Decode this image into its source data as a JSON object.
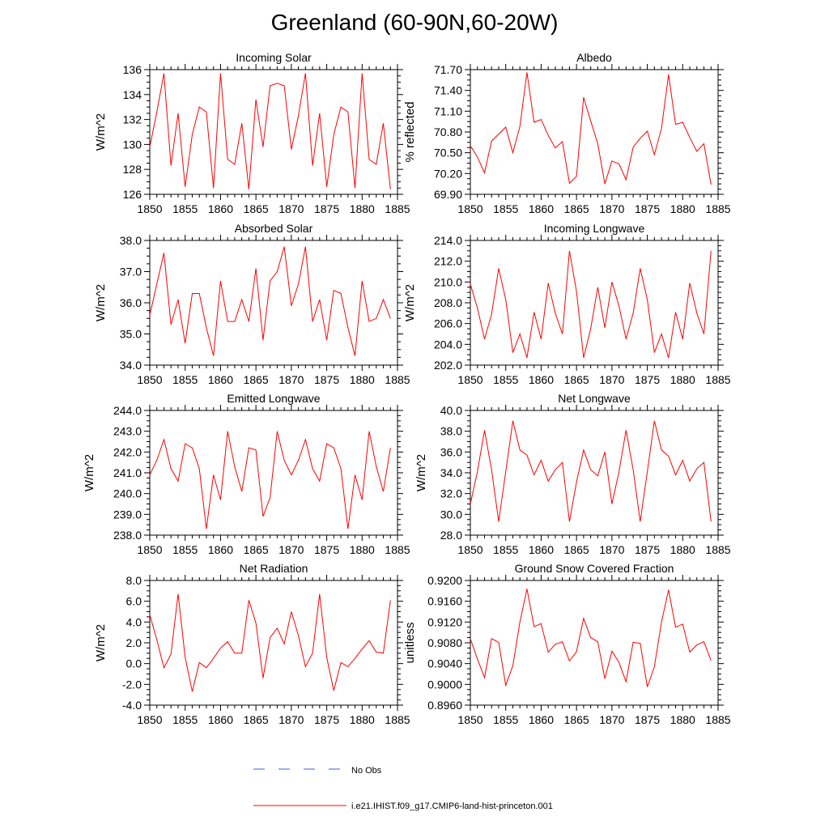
{
  "title": "Greenland (60-90N,60-20W)",
  "legend": {
    "obs_label": "No Obs",
    "obs_color": "#4a5bd6",
    "model_label": "i.e21.IHIST.f09_g17.CMIP6-land-hist-princeton.001",
    "model_color": "#ff0000"
  },
  "chart_data": [
    {
      "type": "line",
      "title": "Incoming Solar",
      "ylabel": "W/m^2",
      "xlim": [
        1850,
        1885
      ],
      "ylim": [
        126,
        136
      ],
      "xticks": [
        "1850",
        "1855",
        "1860",
        "1865",
        "1870",
        "1875",
        "1880",
        "1885"
      ],
      "yticks": [
        "126",
        "128",
        "130",
        "132",
        "134",
        "136"
      ],
      "x": [
        1850,
        1851,
        1852,
        1853,
        1854,
        1855,
        1856,
        1857,
        1858,
        1859,
        1860,
        1861,
        1862,
        1863,
        1864,
        1865,
        1866,
        1867,
        1868,
        1869,
        1870,
        1871,
        1872,
        1873,
        1874,
        1875,
        1876,
        1877,
        1878,
        1879,
        1880,
        1881,
        1882,
        1883,
        1884
      ],
      "series": [
        {
          "values": [
            129.8,
            132.6,
            135.7,
            128.3,
            132.5,
            126.6,
            130.8,
            133.0,
            132.6,
            126.5,
            135.7,
            128.8,
            128.4,
            131.7,
            126.4,
            133.6,
            129.8,
            134.7,
            134.9,
            134.7,
            129.6,
            132.3,
            135.7,
            128.3,
            132.5,
            126.6,
            130.8,
            133.0,
            132.6,
            126.5,
            135.7,
            128.8,
            128.4,
            131.7,
            126.4
          ]
        }
      ]
    },
    {
      "type": "line",
      "title": "Albedo",
      "ylabel": "% reflected",
      "xlim": [
        1850,
        1885
      ],
      "ylim": [
        69.9,
        71.7
      ],
      "xticks": [
        "1850",
        "1855",
        "1860",
        "1865",
        "1870",
        "1875",
        "1880",
        "1885"
      ],
      "yticks": [
        "69.90",
        "70.20",
        "70.50",
        "70.80",
        "71.10",
        "71.40",
        "71.70"
      ],
      "x": [
        1850,
        1851,
        1852,
        1853,
        1854,
        1855,
        1856,
        1857,
        1858,
        1859,
        1860,
        1861,
        1862,
        1863,
        1864,
        1865,
        1866,
        1867,
        1868,
        1869,
        1870,
        1871,
        1872,
        1873,
        1874,
        1875,
        1876,
        1877,
        1878,
        1879,
        1880,
        1881,
        1882,
        1883,
        1884
      ],
      "series": [
        {
          "values": [
            70.6,
            70.44,
            70.21,
            70.67,
            70.77,
            70.87,
            70.5,
            70.88,
            71.66,
            70.94,
            70.98,
            70.75,
            70.57,
            70.66,
            70.06,
            70.16,
            71.3,
            70.96,
            70.63,
            70.05,
            70.38,
            70.34,
            70.11,
            70.58,
            70.71,
            70.81,
            70.47,
            70.85,
            71.63,
            70.91,
            70.94,
            70.72,
            70.52,
            70.63,
            70.04
          ]
        }
      ]
    },
    {
      "type": "line",
      "title": "Absorbed Solar",
      "ylabel": "W/m^2",
      "xlim": [
        1850,
        1885
      ],
      "ylim": [
        34.0,
        38.0
      ],
      "xticks": [
        "1850",
        "1855",
        "1860",
        "1865",
        "1870",
        "1875",
        "1880",
        "1885"
      ],
      "yticks": [
        "34.0",
        "35.0",
        "36.0",
        "37.0",
        "38.0"
      ],
      "x": [
        1850,
        1851,
        1852,
        1853,
        1854,
        1855,
        1856,
        1857,
        1858,
        1859,
        1860,
        1861,
        1862,
        1863,
        1864,
        1865,
        1866,
        1867,
        1868,
        1869,
        1870,
        1871,
        1872,
        1873,
        1874,
        1875,
        1876,
        1877,
        1878,
        1879,
        1880,
        1881,
        1882,
        1883,
        1884
      ],
      "series": [
        {
          "values": [
            35.6,
            36.6,
            37.6,
            35.3,
            36.1,
            34.7,
            36.3,
            36.3,
            35.2,
            34.3,
            36.7,
            35.4,
            35.4,
            36.1,
            35.4,
            37.1,
            34.8,
            36.7,
            37.0,
            37.8,
            35.9,
            36.6,
            37.8,
            35.4,
            36.1,
            34.8,
            36.4,
            36.3,
            35.2,
            34.3,
            36.7,
            35.4,
            35.5,
            36.1,
            35.5
          ]
        }
      ]
    },
    {
      "type": "line",
      "title": "Incoming Longwave",
      "ylabel": "W/m^2",
      "xlim": [
        1850,
        1885
      ],
      "ylim": [
        202.0,
        214.0
      ],
      "xticks": [
        "1850",
        "1855",
        "1860",
        "1865",
        "1870",
        "1875",
        "1880",
        "1885"
      ],
      "yticks": [
        "202.0",
        "204.0",
        "206.0",
        "208.0",
        "210.0",
        "212.0",
        "214.0"
      ],
      "x": [
        1850,
        1851,
        1852,
        1853,
        1854,
        1855,
        1856,
        1857,
        1858,
        1859,
        1860,
        1861,
        1862,
        1863,
        1864,
        1865,
        1866,
        1867,
        1868,
        1869,
        1870,
        1871,
        1872,
        1873,
        1874,
        1875,
        1876,
        1877,
        1878,
        1879,
        1880,
        1881,
        1882,
        1883,
        1884
      ],
      "series": [
        {
          "values": [
            209.8,
            207.5,
            204.5,
            206.9,
            211.3,
            208.3,
            203.2,
            205.0,
            202.7,
            207.1,
            204.5,
            209.9,
            207.0,
            205.0,
            213.0,
            209.1,
            202.7,
            205.5,
            209.5,
            205.6,
            210.0,
            207.7,
            204.5,
            207.0,
            211.3,
            208.3,
            203.2,
            205.0,
            202.7,
            207.1,
            204.5,
            209.9,
            207.0,
            205.0,
            213.0
          ]
        }
      ]
    },
    {
      "type": "line",
      "title": "Emitted Longwave",
      "ylabel": "W/m^2",
      "xlim": [
        1850,
        1885
      ],
      "ylim": [
        238.0,
        244.0
      ],
      "xticks": [
        "1850",
        "1855",
        "1860",
        "1865",
        "1870",
        "1875",
        "1880",
        "1885"
      ],
      "yticks": [
        "238.0",
        "239.0",
        "240.0",
        "241.0",
        "242.0",
        "243.0",
        "244.0"
      ],
      "x": [
        1850,
        1851,
        1852,
        1853,
        1854,
        1855,
        1856,
        1857,
        1858,
        1859,
        1860,
        1861,
        1862,
        1863,
        1864,
        1865,
        1866,
        1867,
        1868,
        1869,
        1870,
        1871,
        1872,
        1873,
        1874,
        1875,
        1876,
        1877,
        1878,
        1879,
        1880,
        1881,
        1882,
        1883,
        1884
      ],
      "series": [
        {
          "values": [
            240.9,
            241.6,
            242.6,
            241.2,
            240.6,
            242.4,
            242.2,
            241.2,
            238.3,
            240.9,
            239.7,
            243.0,
            241.3,
            240.1,
            242.2,
            242.1,
            238.9,
            239.8,
            243.0,
            241.6,
            240.9,
            241.6,
            242.6,
            241.2,
            240.6,
            242.4,
            242.2,
            241.2,
            238.3,
            240.9,
            239.7,
            243.0,
            241.3,
            240.1,
            242.2
          ]
        }
      ]
    },
    {
      "type": "line",
      "title": "Net Longwave",
      "ylabel": "W/m^2",
      "xlim": [
        1850,
        1885
      ],
      "ylim": [
        28.0,
        40.0
      ],
      "xticks": [
        "1850",
        "1855",
        "1860",
        "1865",
        "1870",
        "1875",
        "1880",
        "1885"
      ],
      "yticks": [
        "28.0",
        "30.0",
        "32.0",
        "34.0",
        "36.0",
        "38.0",
        "40.0"
      ],
      "x": [
        1850,
        1851,
        1852,
        1853,
        1854,
        1855,
        1856,
        1857,
        1858,
        1859,
        1860,
        1861,
        1862,
        1863,
        1864,
        1865,
        1866,
        1867,
        1868,
        1869,
        1870,
        1871,
        1872,
        1873,
        1874,
        1875,
        1876,
        1877,
        1878,
        1879,
        1880,
        1881,
        1882,
        1883,
        1884
      ],
      "series": [
        {
          "values": [
            31.0,
            34.1,
            38.1,
            34.3,
            29.3,
            34.1,
            39.0,
            36.2,
            35.7,
            33.8,
            35.2,
            33.2,
            34.3,
            35.0,
            29.3,
            33.1,
            36.2,
            34.3,
            33.7,
            36.0,
            31.0,
            34.1,
            38.1,
            34.3,
            29.3,
            34.1,
            39.0,
            36.2,
            35.6,
            33.8,
            35.2,
            33.2,
            34.4,
            35.0,
            29.3
          ]
        }
      ]
    },
    {
      "type": "line",
      "title": "Net Radiation",
      "ylabel": "W/m^2",
      "xlim": [
        1850,
        1885
      ],
      "ylim": [
        -4.0,
        8.0
      ],
      "xticks": [
        "1850",
        "1855",
        "1860",
        "1865",
        "1870",
        "1875",
        "1880",
        "1885"
      ],
      "yticks": [
        "-4.0",
        "-2.0",
        "0.0",
        "2.0",
        "4.0",
        "6.0",
        "8.0"
      ],
      "x": [
        1850,
        1851,
        1852,
        1853,
        1854,
        1855,
        1856,
        1857,
        1858,
        1859,
        1860,
        1861,
        1862,
        1863,
        1864,
        1865,
        1866,
        1867,
        1868,
        1869,
        1870,
        1871,
        1872,
        1873,
        1874,
        1875,
        1876,
        1877,
        1878,
        1879,
        1880,
        1881,
        1882,
        1883,
        1884
      ],
      "series": [
        {
          "values": [
            4.7,
            2.3,
            -0.4,
            0.9,
            6.7,
            0.6,
            -2.7,
            0.1,
            -0.4,
            0.5,
            1.5,
            2.1,
            1.0,
            1.0,
            6.1,
            3.9,
            -1.4,
            2.5,
            3.4,
            1.9,
            5.0,
            2.7,
            -0.3,
            1.0,
            6.7,
            0.6,
            -2.6,
            0.1,
            -0.3,
            0.5,
            1.4,
            2.2,
            1.1,
            1.0,
            6.1
          ]
        }
      ]
    },
    {
      "type": "line",
      "title": "Ground Snow Covered Fraction",
      "ylabel": "unitless",
      "xlim": [
        1850,
        1885
      ],
      "ylim": [
        0.896,
        0.92
      ],
      "xticks": [
        "1850",
        "1855",
        "1860",
        "1865",
        "1870",
        "1875",
        "1880",
        "1885"
      ],
      "yticks": [
        "0.8960",
        "0.9000",
        "0.9040",
        "0.9080",
        "0.9120",
        "0.9160",
        "0.9200"
      ],
      "x": [
        1850,
        1851,
        1852,
        1853,
        1854,
        1855,
        1856,
        1857,
        1858,
        1859,
        1860,
        1861,
        1862,
        1863,
        1864,
        1865,
        1866,
        1867,
        1868,
        1869,
        1870,
        1871,
        1872,
        1873,
        1874,
        1875,
        1876,
        1877,
        1878,
        1879,
        1880,
        1881,
        1882,
        1883,
        1884
      ],
      "series": [
        {
          "values": [
            0.9088,
            0.9049,
            0.9013,
            0.9088,
            0.9081,
            0.8998,
            0.9036,
            0.912,
            0.9184,
            0.9111,
            0.9117,
            0.9062,
            0.9077,
            0.9082,
            0.9045,
            0.9063,
            0.9127,
            0.909,
            0.9082,
            0.9011,
            0.9064,
            0.9042,
            0.9005,
            0.9081,
            0.9079,
            0.8995,
            0.9034,
            0.912,
            0.9182,
            0.911,
            0.9116,
            0.9062,
            0.9076,
            0.9082,
            0.9046
          ]
        }
      ]
    }
  ]
}
